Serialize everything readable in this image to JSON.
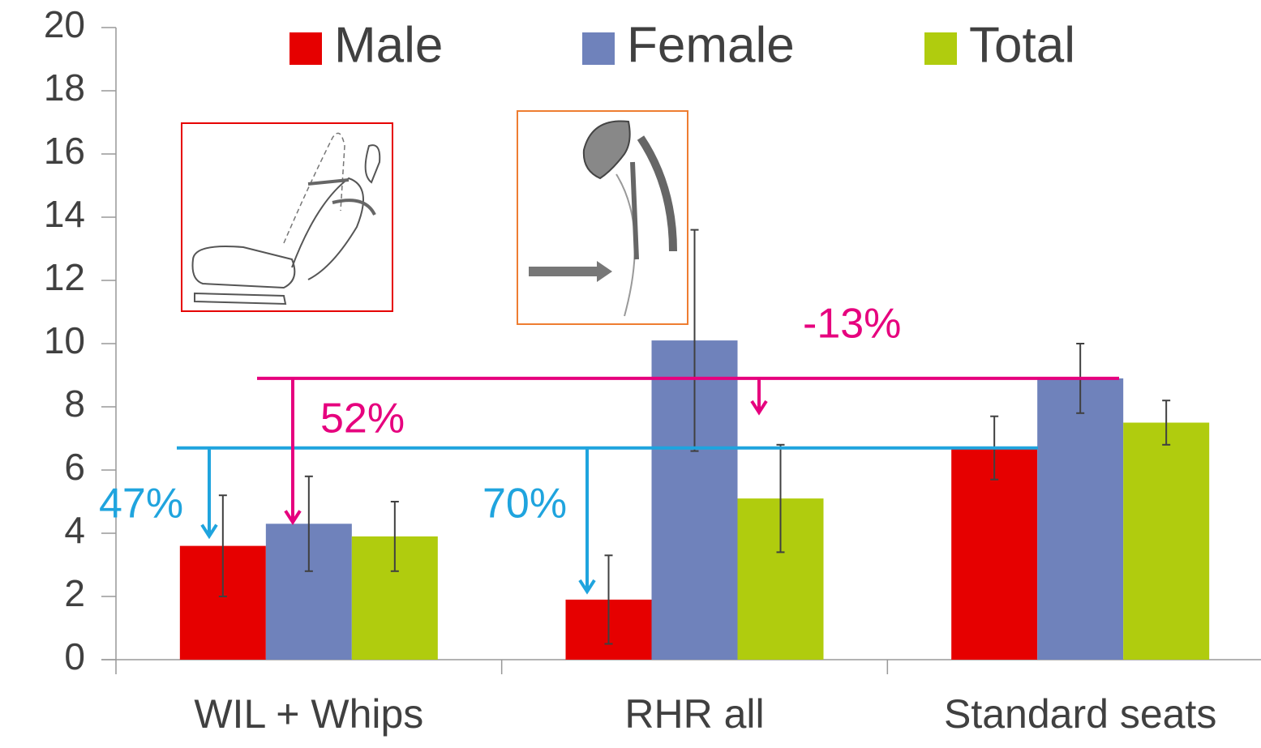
{
  "chart_data": {
    "type": "bar",
    "categories": [
      "WIL + Whips",
      "RHR all",
      "Standard seats"
    ],
    "series": [
      {
        "name": "Male",
        "color": "#e60000",
        "values": [
          3.6,
          1.9,
          6.7
        ],
        "errors": [
          1.6,
          1.4,
          1.0
        ]
      },
      {
        "name": "Female",
        "color": "#6f82bb",
        "values": [
          4.3,
          10.1,
          8.9
        ],
        "errors": [
          1.5,
          3.5,
          1.1
        ]
      },
      {
        "name": "Total",
        "color": "#b0cc0e",
        "values": [
          3.9,
          5.1,
          7.5
        ],
        "errors": [
          1.1,
          1.7,
          0.7
        ]
      }
    ],
    "ylim": [
      0,
      20
    ],
    "yticks": [
      0,
      2,
      4,
      6,
      8,
      10,
      12,
      14,
      16,
      18,
      20
    ],
    "annotations": [
      {
        "text": "-13%",
        "color": "#e6007e"
      },
      {
        "text": "52%",
        "color": "#e6007e"
      },
      {
        "text": "47%",
        "color": "#1fa4de"
      },
      {
        "text": "70%",
        "color": "#1fa4de"
      }
    ]
  }
}
